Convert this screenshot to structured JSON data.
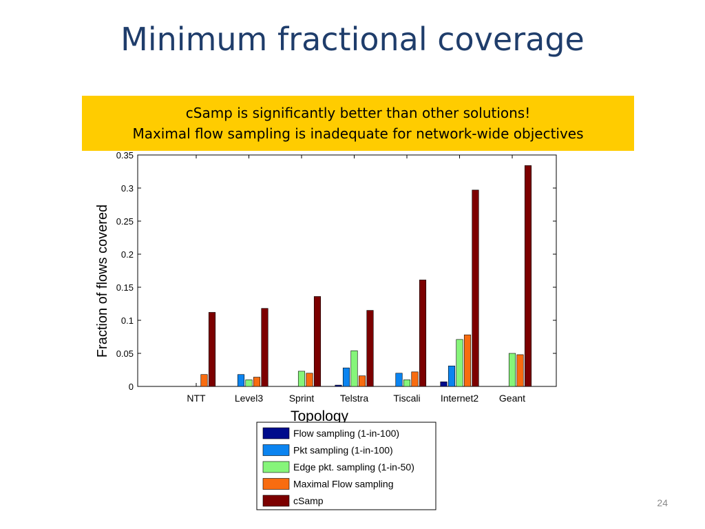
{
  "slide": {
    "title": "Minimum fractional coverage",
    "callout_line1": "cSamp is significantly better than other solutions!",
    "callout_line2": "Maximal flow sampling is inadequate for network-wide objectives",
    "slide_number": "24"
  },
  "chart_data": {
    "type": "bar",
    "xlabel": "Topology",
    "ylabel": "Fraction of flows covered",
    "ylim": [
      0,
      0.35
    ],
    "yticks": [
      "0",
      "0.05",
      "0.1",
      "0.15",
      "0.2",
      "0.25",
      "0.3",
      "0.35"
    ],
    "categories": [
      "NTT",
      "Level3",
      "Sprint",
      "Telstra",
      "Tiscali",
      "Internet2",
      "Geant"
    ],
    "series": [
      {
        "name": "Flow sampling (1-in-100)",
        "color": "#000c8c",
        "values": [
          0,
          0,
          0,
          0.002,
          0,
          0.007,
          0
        ]
      },
      {
        "name": "Pkt sampling (1-in-100)",
        "color": "#0b84f0",
        "values": [
          0,
          0.018,
          0,
          0.028,
          0.02,
          0.031,
          0
        ]
      },
      {
        "name": "Edge pkt. sampling (1-in-50)",
        "color": "#86f57a",
        "values": [
          0,
          0.01,
          0.023,
          0.054,
          0.01,
          0.071,
          0.05
        ]
      },
      {
        "name": "Maximal Flow sampling",
        "color": "#f86c10",
        "values": [
          0.018,
          0.014,
          0.02,
          0.016,
          0.022,
          0.078,
          0.048
        ]
      },
      {
        "name": "cSamp",
        "color": "#7c0000",
        "values": [
          0.112,
          0.118,
          0.136,
          0.115,
          0.161,
          0.297,
          0.334
        ]
      }
    ],
    "grid": false,
    "legend_position": "bottom"
  }
}
